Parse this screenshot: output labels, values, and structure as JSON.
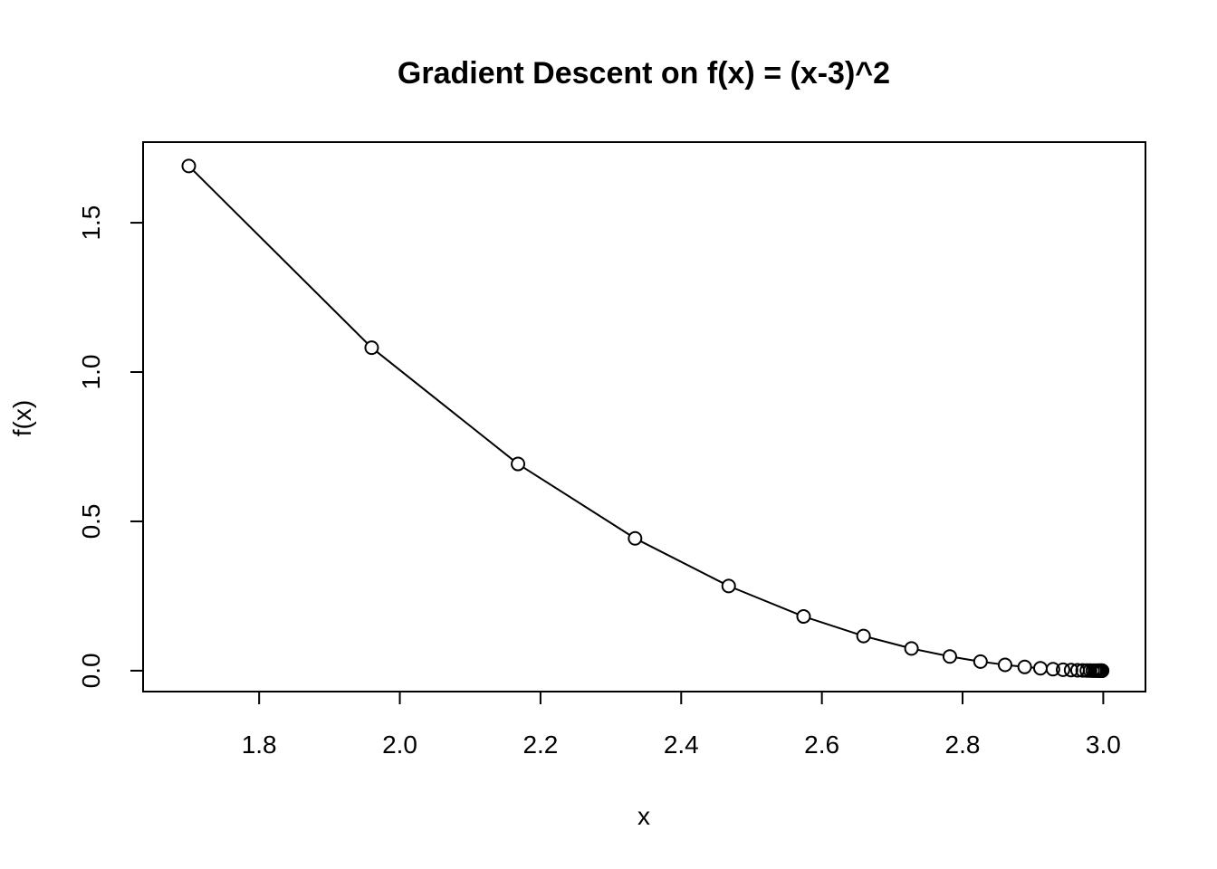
{
  "chart_data": {
    "type": "line",
    "title": "Gradient Descent on f(x) = (x-3)^2",
    "xlabel": "x",
    "ylabel": "f(x)",
    "xlim": [
      1.635,
      3.06
    ],
    "ylim": [
      -0.07,
      1.77
    ],
    "x_ticks": [
      1.8,
      2.0,
      2.2,
      2.4,
      2.6,
      2.8,
      3.0
    ],
    "x_tick_labels": [
      "1.8",
      "2.0",
      "2.2",
      "2.4",
      "2.6",
      "2.8",
      "3.0"
    ],
    "y_ticks": [
      0.0,
      0.5,
      1.0,
      1.5
    ],
    "y_tick_labels": [
      "0.0",
      "0.5",
      "1.0",
      "1.5"
    ],
    "grid": false,
    "marker": "open-circle",
    "series": [
      {
        "x": [
          1.7,
          1.96,
          2.168,
          2.3344,
          2.46752,
          2.574016,
          2.6592128,
          2.72737024,
          2.781896192,
          2.8255169536,
          2.86041356288,
          2.888330850304,
          2.9106646802432,
          2.92853174419456,
          2.942825395355648,
          2.9542603162845182,
          2.963408253027615,
          2.970726602422092,
          2.9765812819376736,
          2.9812650255501385,
          2.985012020440111,
          2.988009616352089,
          2.990407693081671,
          2.992326154465337,
          2.9938609235722695,
          2.995088738857816,
          2.9960709910862526,
          2.996856792869002,
          2.9974854342952018,
          2.9979883474361615,
          2.998390677948929
        ],
        "y": [
          1.69,
          1.0816,
          0.692224,
          0.44302336,
          0.2835349504,
          0.181462368256,
          0.11613591568384,
          0.0743269860376576,
          0.04756927106410086,
          0.030444333481024554,
          0.019484373427855715,
          0.01247,
          0.007981,
          0.005108,
          0.003269,
          0.002092,
          0.001339,
          0.000857,
          0.000548,
          0.000351,
          0.000225,
          0.000144,
          9.2e-05,
          5.89e-05,
          3.77e-05,
          2.41e-05,
          1.54e-05,
          9.9e-06,
          6.3e-06,
          4e-06,
          2.6e-06
        ]
      }
    ]
  }
}
